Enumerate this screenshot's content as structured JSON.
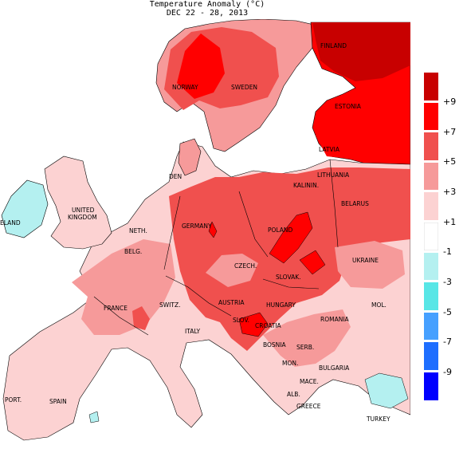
{
  "title": {
    "line1": "Temperature Anomaly (°C)",
    "line2": "DEC 22 - 28, 2013"
  },
  "colors": {
    "sea": "#ffffff",
    "c_9plus": "#c80000",
    "c_7_9": "#ff0000",
    "c_5_7": "#f0504e",
    "c_3_5": "#f69a9a",
    "c_1_3": "#fcd2d2",
    "c_m1_1": "#ffffff",
    "c_m3_m1": "#b4f0f0",
    "c_m5_m3": "#58e6e6",
    "c_m7_m5": "#46a0ff",
    "c_m9_m7": "#1e6eff",
    "c_m9minus": "#0000ff"
  },
  "legend": {
    "colors": [
      "#c80000",
      "#ff0000",
      "#f0504e",
      "#f69a9a",
      "#fcd2d2",
      "#ffffff",
      "#b4f0f0",
      "#58e6e6",
      "#46a0ff",
      "#1e6eff",
      "#0000ff"
    ],
    "ticks": [
      "+9",
      "+7",
      "+5",
      "+3",
      "+1",
      "-1",
      "-3",
      "-5",
      "-7",
      "-9"
    ]
  },
  "countries": {
    "finland": "FINLAND",
    "sweden": "SWEDEN",
    "norway": "NORWAY",
    "estonia": "ESTONIA",
    "latvia": "LATVIA",
    "lithuania": "LITHUANIA",
    "kalinin": "KALININ.",
    "belarus": "BELARUS",
    "den": "DEN",
    "united": "UNITED",
    "kingdom": "KINGDOM",
    "eland": "ELAND",
    "neth": "NETH.",
    "germany": "GERMANY",
    "poland": "POLAND",
    "belg": "BELG.",
    "czech": "CZECH.",
    "slovak": "SLOVAK.",
    "ukraine": "UKRAINE",
    "france": "FRANCE",
    "switz": "SWITZ.",
    "austria": "AUSTRIA",
    "hungary": "HUNGARY",
    "mol": "MOL.",
    "romania": "ROMANIA",
    "italy": "ITALY",
    "slov": "SLOV.",
    "croatia": "CROATIA",
    "bosnia": "BOSNIA",
    "serb": "SERB.",
    "mon": "MON.",
    "bulgaria": "BULGARIA",
    "mace": "MACE.",
    "alb": "ALB.",
    "greece": "GREECE",
    "turkey": "TURKEY",
    "port": "PORT.",
    "spain": "SPAIN"
  }
}
